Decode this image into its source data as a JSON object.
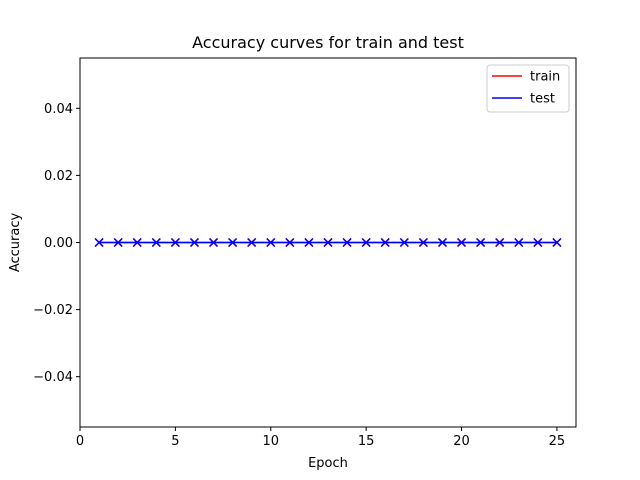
{
  "chart_data": {
    "type": "line",
    "title": "Accuracy curves for train and test",
    "xlabel": "Epoch",
    "ylabel": "Accuracy",
    "xlim": [
      0,
      26
    ],
    "ylim": [
      -0.055,
      0.055
    ],
    "xticks": [
      0,
      5,
      10,
      15,
      20,
      25
    ],
    "yticks": [
      -0.04,
      -0.02,
      0.0,
      0.02,
      0.04
    ],
    "ytick_labels": [
      "−0.04",
      "−0.02",
      "0.00",
      "0.02",
      "0.04"
    ],
    "xtick_labels": [
      "0",
      "5",
      "10",
      "15",
      "20",
      "25"
    ],
    "grid": false,
    "legend": "top-right",
    "x": [
      1,
      2,
      3,
      4,
      5,
      6,
      7,
      8,
      9,
      10,
      11,
      12,
      13,
      14,
      15,
      16,
      17,
      18,
      19,
      20,
      21,
      22,
      23,
      24,
      25
    ],
    "series": [
      {
        "name": "train",
        "color": "#ff0000",
        "marker": "x",
        "values": [
          0,
          0,
          0,
          0,
          0,
          0,
          0,
          0,
          0,
          0,
          0,
          0,
          0,
          0,
          0,
          0,
          0,
          0,
          0,
          0,
          0,
          0,
          0,
          0,
          0
        ]
      },
      {
        "name": "test",
        "color": "#0000ff",
        "marker": "x",
        "values": [
          0,
          0,
          0,
          0,
          0,
          0,
          0,
          0,
          0,
          0,
          0,
          0,
          0,
          0,
          0,
          0,
          0,
          0,
          0,
          0,
          0,
          0,
          0,
          0,
          0
        ]
      }
    ]
  }
}
